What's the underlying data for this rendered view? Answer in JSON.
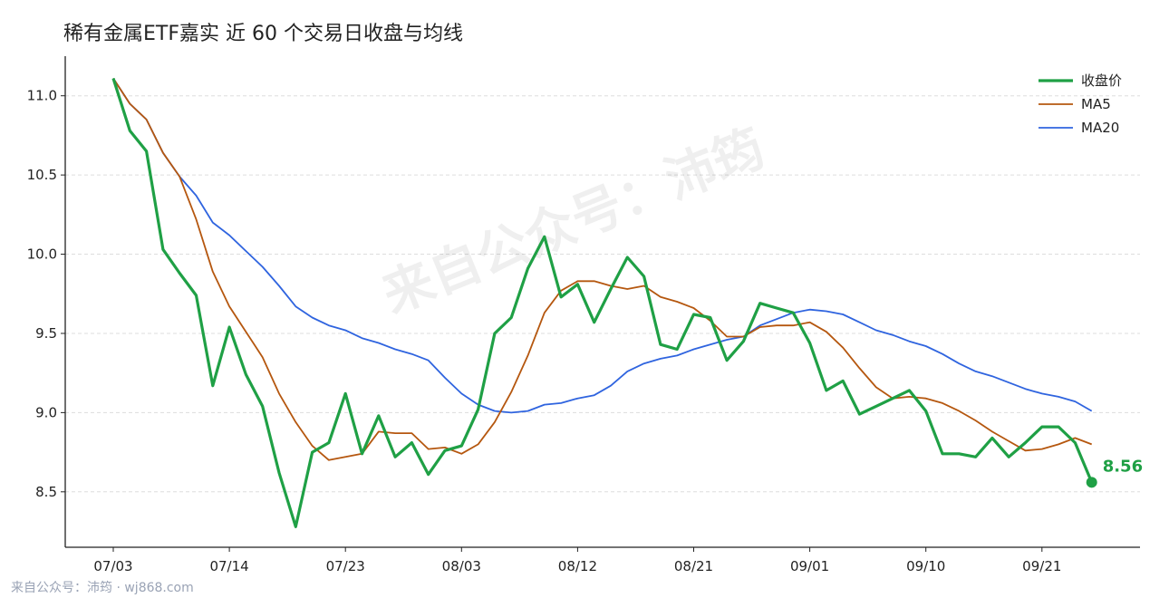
{
  "title": "稀有金属ETF嘉实 近 60 个交易日收盘与均线",
  "watermark": "来自公众号：沛筠",
  "source": "来自公众号：沛筠 · wj868.com",
  "colors": {
    "close": "#1fa045",
    "ma5": "#b5570f",
    "ma20": "#2f64df",
    "grid": "#dddddd",
    "axis": "#222222"
  },
  "chart_data": {
    "type": "line",
    "title": "稀有金属ETF嘉实 近 60 个交易日收盘与均线",
    "xlabel": "",
    "ylabel": "",
    "ylim": [
      8.15,
      11.25
    ],
    "yticks": [
      8.5,
      9.0,
      9.5,
      10.0,
      10.5,
      11.0
    ],
    "ytick_labels": [
      "8.5",
      "9.0",
      "9.5",
      "10.0",
      "10.5",
      "11.0"
    ],
    "xticks": [
      "07/03",
      "07/14",
      "07/23",
      "08/03",
      "08/12",
      "08/21",
      "09/01",
      "09/10",
      "09/21"
    ],
    "xtick_index": [
      0,
      7,
      14,
      21,
      28,
      35,
      42,
      49,
      56
    ],
    "grid": "horizontal-dashed",
    "legend_position": "top-right",
    "last_value_label": "8.56",
    "series": [
      {
        "name": "收盘价",
        "values": [
          11.11,
          10.78,
          10.65,
          10.03,
          9.88,
          9.74,
          9.17,
          9.54,
          9.24,
          9.04,
          8.62,
          8.28,
          8.75,
          8.81,
          9.12,
          8.74,
          8.98,
          8.72,
          8.81,
          8.61,
          8.76,
          8.79,
          9.02,
          9.5,
          9.6,
          9.91,
          10.11,
          9.73,
          9.81,
          9.57,
          9.78,
          9.98,
          9.86,
          9.43,
          9.4,
          9.62,
          9.6,
          9.33,
          9.45,
          9.69,
          9.66,
          9.63,
          9.44,
          9.14,
          9.2,
          8.99,
          9.04,
          9.09,
          9.14,
          9.01,
          8.74,
          8.74,
          8.72,
          8.84,
          8.72,
          8.81,
          8.91,
          8.91,
          8.81,
          8.56
        ]
      },
      {
        "name": "MA5",
        "values": [
          11.11,
          10.95,
          10.85,
          10.64,
          10.49,
          10.22,
          9.89,
          9.67,
          9.51,
          9.35,
          9.12,
          8.94,
          8.79,
          8.7,
          8.72,
          8.74,
          8.88,
          8.87,
          8.87,
          8.77,
          8.78,
          8.74,
          8.8,
          8.94,
          9.13,
          9.36,
          9.63,
          9.77,
          9.83,
          9.83,
          9.8,
          9.78,
          9.8,
          9.73,
          9.7,
          9.66,
          9.58,
          9.48,
          9.48,
          9.54,
          9.55,
          9.55,
          9.57,
          9.51,
          9.41,
          9.28,
          9.16,
          9.09,
          9.1,
          9.09,
          9.06,
          9.01,
          8.95,
          8.88,
          8.82,
          8.76,
          8.77,
          8.8,
          8.84,
          8.8
        ]
      },
      {
        "name": "MA20",
        "values": [
          11.11,
          10.95,
          10.85,
          10.64,
          10.49,
          10.37,
          10.2,
          10.12,
          10.02,
          9.92,
          9.8,
          9.67,
          9.6,
          9.55,
          9.52,
          9.47,
          9.44,
          9.4,
          9.37,
          9.33,
          9.22,
          9.12,
          9.05,
          9.01,
          9.0,
          9.01,
          9.05,
          9.06,
          9.09,
          9.11,
          9.17,
          9.26,
          9.31,
          9.34,
          9.36,
          9.4,
          9.43,
          9.46,
          9.48,
          9.55,
          9.59,
          9.63,
          9.65,
          9.64,
          9.62,
          9.57,
          9.52,
          9.49,
          9.45,
          9.42,
          9.37,
          9.31,
          9.26,
          9.23,
          9.19,
          9.15,
          9.12,
          9.1,
          9.07,
          9.01
        ]
      }
    ]
  }
}
